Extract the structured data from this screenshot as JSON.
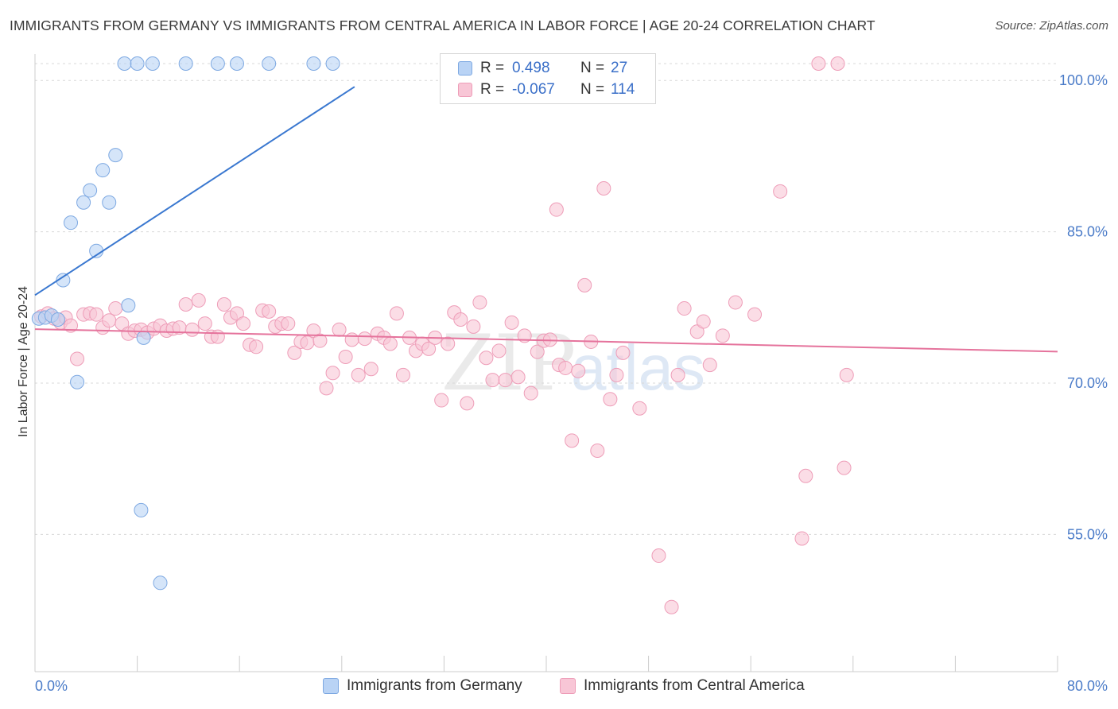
{
  "header": {
    "title": "IMMIGRANTS FROM GERMANY VS IMMIGRANTS FROM CENTRAL AMERICA IN LABOR FORCE | AGE 20-24 CORRELATION CHART",
    "source": "Source: ZipAtlas.com"
  },
  "watermark": "ZIPatlas",
  "colors": {
    "germany_fill": "#b9d3f5",
    "germany_stroke": "#7ea9e2",
    "germany_line": "#3a78d0",
    "central_fill": "#f8c6d6",
    "central_stroke": "#ee9db8",
    "central_line": "#e5739c",
    "tick_label": "#4a7bc8",
    "grid": "#d8d8d8"
  },
  "legend": {
    "rows": [
      {
        "r_label": "R =",
        "r_value": "0.498",
        "n_label": "N =",
        "n_value": "27"
      },
      {
        "r_label": "R =",
        "r_value": "-0.067",
        "n_label": "N =",
        "n_value": "114"
      }
    ]
  },
  "chart_data": {
    "type": "scatter",
    "title": "IMMIGRANTS FROM GERMANY VS IMMIGRANTS FROM CENTRAL AMERICA IN LABOR FORCE | AGE 20-24 CORRELATION CHART",
    "xlabel": "",
    "ylabel": "In Labor Force | Age 20-24",
    "xlim": [
      0,
      80
    ],
    "ylim": [
      41.4,
      102.3
    ],
    "x_tick_labels": [
      "0.0%",
      "80.0%"
    ],
    "y_ticks": [
      55,
      70,
      85,
      100
    ],
    "y_tick_labels": [
      "55.0%",
      "70.0%",
      "85.0%",
      "100.0%"
    ],
    "grid": true,
    "legend_position": "top-center",
    "series": [
      {
        "name": "Immigrants from Germany",
        "r": 0.498,
        "n": 27,
        "trend": [
          [
            0.0,
            78.72
          ],
          [
            25.0,
            100.0
          ]
        ],
        "points": [
          [
            0.3,
            76.4
          ],
          [
            0.8,
            76.5
          ],
          [
            1.3,
            76.7
          ],
          [
            1.8,
            76.3
          ],
          [
            2.2,
            80.2
          ],
          [
            2.8,
            85.9
          ],
          [
            3.3,
            70.1
          ],
          [
            3.8,
            87.9
          ],
          [
            4.3,
            89.1
          ],
          [
            4.8,
            83.1
          ],
          [
            5.3,
            91.1
          ],
          [
            5.8,
            87.9
          ],
          [
            6.3,
            92.6
          ],
          [
            7.3,
            77.7
          ],
          [
            7.0,
            100
          ],
          [
            8.0,
            100
          ],
          [
            9.2,
            100
          ],
          [
            8.5,
            74.5
          ],
          [
            8.3,
            57.4
          ],
          [
            9.8,
            50.2
          ],
          [
            11.8,
            100
          ],
          [
            14.3,
            100
          ],
          [
            15.8,
            100
          ],
          [
            18.3,
            100
          ],
          [
            21.8,
            100
          ],
          [
            23.3,
            100
          ],
          [
            34.8,
            100
          ]
        ]
      },
      {
        "name": "Immigrants from Central America",
        "r": -0.067,
        "n": 114,
        "trend": [
          [
            0.0,
            75.35
          ],
          [
            80.0,
            73.12
          ]
        ],
        "points": [
          [
            0.5,
            76.6
          ],
          [
            1.0,
            76.9
          ],
          [
            1.5,
            76.4
          ],
          [
            2.0,
            76.0
          ],
          [
            2.4,
            76.5
          ],
          [
            2.8,
            75.7
          ],
          [
            3.3,
            72.4
          ],
          [
            3.8,
            76.8
          ],
          [
            4.3,
            76.9
          ],
          [
            4.8,
            76.8
          ],
          [
            5.3,
            75.5
          ],
          [
            5.8,
            76.2
          ],
          [
            6.3,
            77.4
          ],
          [
            6.8,
            75.9
          ],
          [
            7.3,
            74.9
          ],
          [
            7.8,
            75.2
          ],
          [
            8.3,
            75.3
          ],
          [
            8.8,
            75.0
          ],
          [
            9.3,
            75.4
          ],
          [
            9.8,
            75.7
          ],
          [
            10.3,
            75.2
          ],
          [
            10.8,
            75.4
          ],
          [
            11.3,
            75.5
          ],
          [
            11.8,
            77.8
          ],
          [
            12.3,
            75.3
          ],
          [
            12.8,
            78.2
          ],
          [
            13.3,
            75.9
          ],
          [
            13.8,
            74.6
          ],
          [
            14.3,
            74.6
          ],
          [
            14.8,
            77.8
          ],
          [
            15.3,
            76.5
          ],
          [
            15.8,
            76.9
          ],
          [
            16.3,
            75.9
          ],
          [
            16.8,
            73.8
          ],
          [
            17.3,
            73.6
          ],
          [
            17.8,
            77.2
          ],
          [
            18.3,
            77.1
          ],
          [
            18.8,
            75.6
          ],
          [
            19.3,
            75.9
          ],
          [
            19.8,
            75.9
          ],
          [
            20.3,
            73.0
          ],
          [
            20.8,
            74.1
          ],
          [
            21.3,
            74.0
          ],
          [
            21.8,
            75.2
          ],
          [
            22.3,
            74.2
          ],
          [
            22.8,
            69.5
          ],
          [
            23.3,
            71.0
          ],
          [
            23.8,
            75.3
          ],
          [
            24.3,
            72.6
          ],
          [
            24.8,
            74.3
          ],
          [
            25.3,
            70.8
          ],
          [
            25.8,
            74.4
          ],
          [
            26.3,
            71.4
          ],
          [
            26.8,
            74.9
          ],
          [
            27.3,
            74.5
          ],
          [
            27.8,
            73.9
          ],
          [
            28.3,
            76.9
          ],
          [
            28.8,
            70.8
          ],
          [
            29.3,
            74.5
          ],
          [
            29.8,
            73.2
          ],
          [
            30.3,
            73.9
          ],
          [
            30.8,
            73.4
          ],
          [
            31.3,
            74.5
          ],
          [
            31.8,
            68.3
          ],
          [
            32.3,
            73.9
          ],
          [
            32.8,
            77.0
          ],
          [
            33.3,
            76.3
          ],
          [
            33.8,
            68.0
          ],
          [
            34.3,
            75.6
          ],
          [
            34.8,
            78.0
          ],
          [
            35.3,
            72.5
          ],
          [
            35.8,
            70.3
          ],
          [
            36.3,
            73.2
          ],
          [
            36.8,
            70.3
          ],
          [
            37.3,
            76.0
          ],
          [
            37.8,
            70.6
          ],
          [
            38.3,
            74.7
          ],
          [
            38.8,
            69.0
          ],
          [
            39.3,
            73.1
          ],
          [
            39.8,
            74.2
          ],
          [
            40.3,
            74.3
          ],
          [
            40.8,
            87.2
          ],
          [
            41.0,
            71.8
          ],
          [
            41.5,
            71.5
          ],
          [
            42.0,
            64.3
          ],
          [
            42.5,
            71.2
          ],
          [
            43.0,
            79.7
          ],
          [
            43.5,
            74.1
          ],
          [
            44.0,
            63.3
          ],
          [
            44.5,
            89.3
          ],
          [
            45.0,
            68.4
          ],
          [
            45.5,
            70.8
          ],
          [
            46.0,
            73.0
          ],
          [
            47.3,
            67.5
          ],
          [
            48.8,
            52.9
          ],
          [
            49.8,
            47.8
          ],
          [
            50.3,
            70.8
          ],
          [
            50.8,
            77.4
          ],
          [
            51.8,
            75.1
          ],
          [
            52.3,
            76.1
          ],
          [
            52.8,
            71.8
          ],
          [
            53.8,
            74.7
          ],
          [
            54.8,
            78.0
          ],
          [
            56.3,
            76.8
          ],
          [
            58.3,
            89.0
          ],
          [
            60.0,
            54.6
          ],
          [
            60.3,
            60.8
          ],
          [
            61.3,
            100
          ],
          [
            62.8,
            100
          ],
          [
            63.3,
            61.6
          ],
          [
            63.5,
            70.8
          ],
          [
            48.0,
            100
          ]
        ]
      }
    ]
  }
}
